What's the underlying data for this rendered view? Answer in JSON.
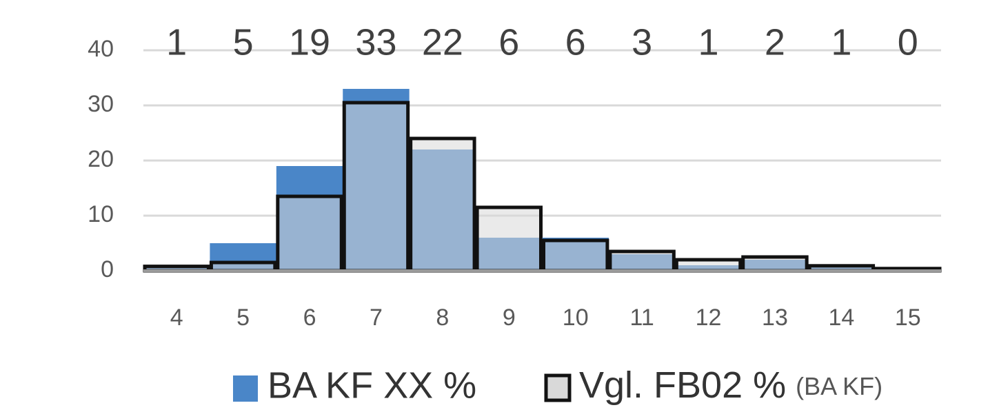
{
  "chart_data": {
    "type": "bar",
    "categories": [
      "4",
      "5",
      "6",
      "7",
      "8",
      "9",
      "10",
      "11",
      "12",
      "13",
      "14",
      "15"
    ],
    "series": [
      {
        "name": "BA KF XX %",
        "color": "#4a86c8",
        "values": [
          1,
          5,
          19,
          33,
          22,
          6,
          6,
          3,
          1,
          2,
          1,
          0
        ]
      },
      {
        "name": "Vgl. FB02 %",
        "color": "#d9d9d9",
        "values": [
          0.8,
          1.5,
          13.5,
          30.5,
          24,
          11.5,
          5.5,
          3.5,
          2,
          2.5,
          0.9,
          0.4
        ]
      }
    ],
    "legend_note": "(BA KF)",
    "ylim": [
      0,
      40
    ],
    "yticks": [
      0,
      10,
      20,
      30,
      40
    ],
    "grid": true,
    "legend": "bottom"
  }
}
